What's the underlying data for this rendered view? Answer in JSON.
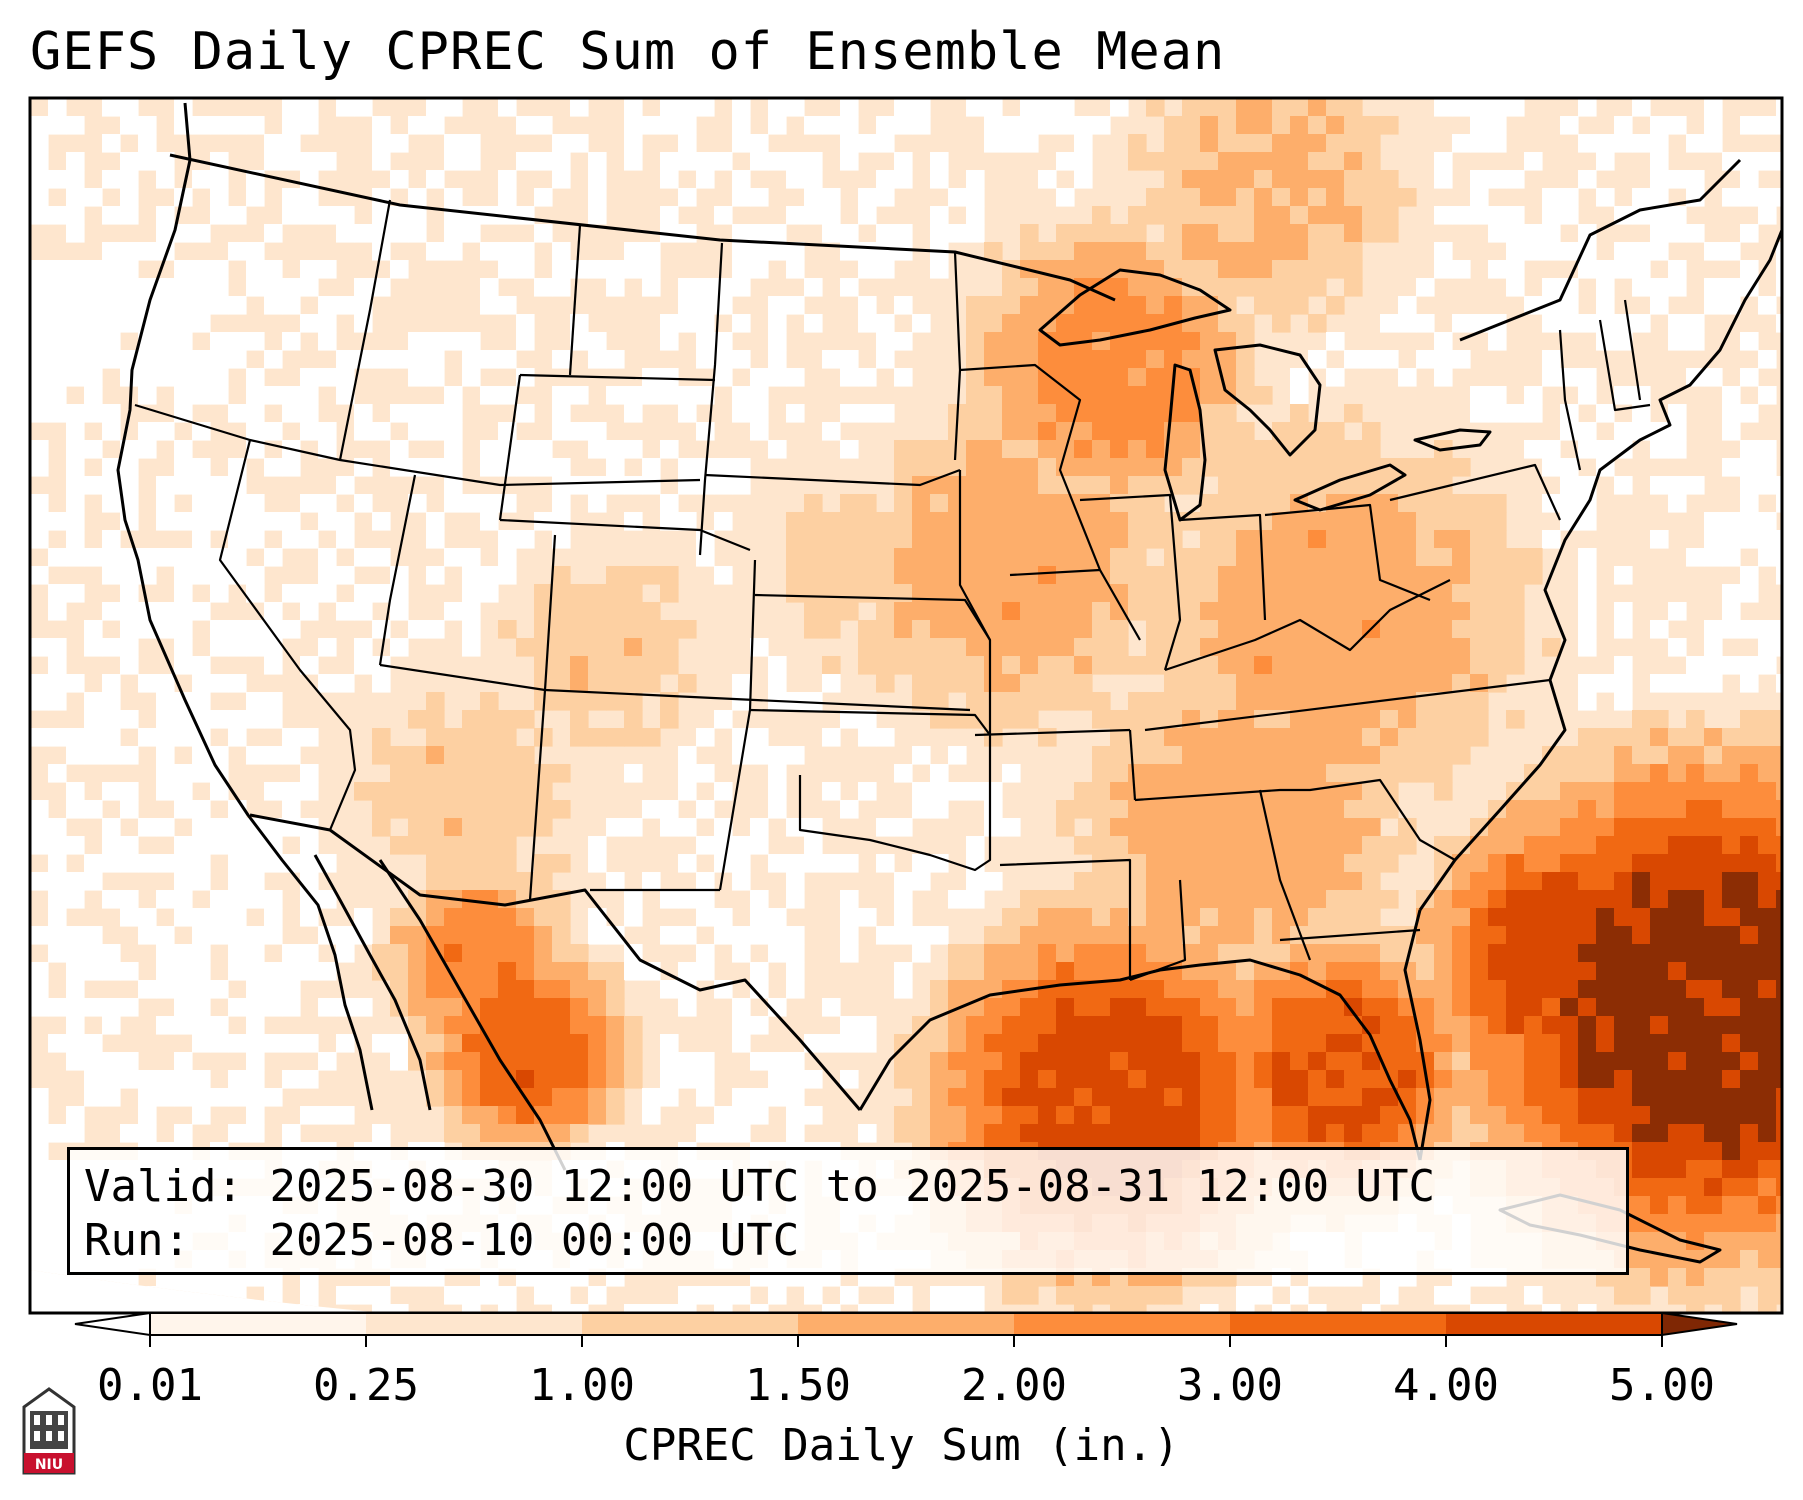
{
  "title": "GEFS Daily CPREC Sum of Ensemble Mean",
  "info": {
    "valid_label": "Valid:",
    "valid_value": "2025-08-30 12:00 UTC to 2025-08-31 12:00 UTC",
    "run_label": "Run:",
    "run_value": "2025-08-10 00:00 UTC"
  },
  "colorbar": {
    "label": "CPREC Daily Sum (in.)",
    "ticks": [
      "0.01",
      "0.25",
      "1.00",
      "1.50",
      "2.00",
      "3.00",
      "4.00",
      "5.00"
    ],
    "colors": [
      "#fff5eb",
      "#fee6ce",
      "#fdd0a2",
      "#fdae6b",
      "#fd8d3c",
      "#f16913",
      "#d94801",
      "#8c2d04"
    ],
    "under_color": "#ffffff",
    "over_color": "#7f2704"
  },
  "logo_text": "NIU",
  "colors": {
    "outline": "#000000",
    "outside_disc": "#ffffff"
  }
}
